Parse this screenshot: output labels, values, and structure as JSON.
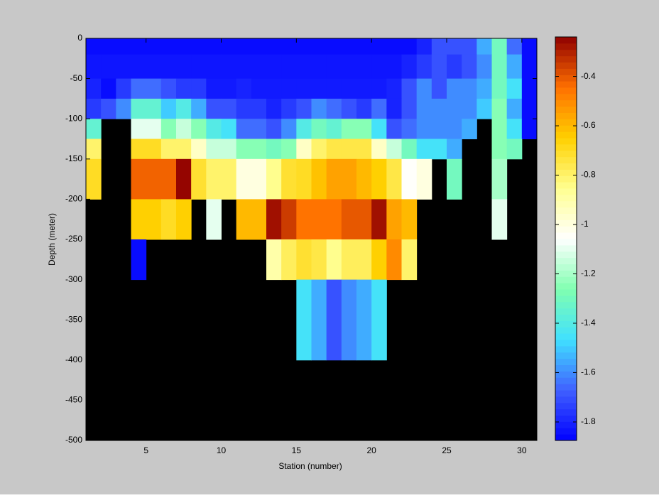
{
  "chart_data": {
    "type": "heatmap",
    "x_label": "Station (number)",
    "y_label": "Depth (meter)",
    "x_edges": [
      1,
      2,
      3,
      4,
      5,
      6,
      7,
      8,
      9,
      10,
      11,
      12,
      13,
      14,
      15,
      16,
      17,
      18,
      19,
      20,
      21,
      22,
      23,
      24,
      25,
      26,
      27,
      28,
      29,
      30,
      31
    ],
    "y_edges": [
      0,
      -20,
      -50,
      -75,
      -100,
      -125,
      -150,
      -200,
      -250,
      -300,
      -400
    ],
    "z": [
      [
        -1.85,
        -1.85,
        -1.85,
        -1.85,
        -1.85,
        -1.85,
        -1.85,
        -1.85,
        -1.85,
        -1.85,
        -1.85,
        -1.85,
        -1.85,
        -1.85,
        -1.85,
        -1.85,
        -1.85,
        -1.85,
        -1.85,
        -1.85,
        -1.85,
        -1.85,
        -1.8,
        -1.7,
        -1.7,
        -1.7,
        -1.55,
        -1.3,
        -1.65,
        -1.85
      ],
      [
        -1.83,
        -1.83,
        -1.83,
        -1.83,
        -1.83,
        -1.83,
        -1.83,
        -1.83,
        -1.83,
        -1.83,
        -1.83,
        -1.83,
        -1.83,
        -1.83,
        -1.83,
        -1.83,
        -1.83,
        -1.83,
        -1.83,
        -1.83,
        -1.83,
        -1.8,
        -1.75,
        -1.7,
        -1.75,
        -1.7,
        -1.6,
        -1.3,
        -1.55,
        -1.85
      ],
      [
        -1.8,
        -1.85,
        -1.75,
        -1.65,
        -1.65,
        -1.7,
        -1.75,
        -1.75,
        -1.82,
        -1.82,
        -1.8,
        -1.82,
        -1.82,
        -1.82,
        -1.82,
        -1.82,
        -1.82,
        -1.82,
        -1.82,
        -1.82,
        -1.8,
        -1.7,
        -1.6,
        -1.7,
        -1.6,
        -1.6,
        -1.55,
        -1.3,
        -1.45,
        -1.85
      ],
      [
        -1.75,
        -1.7,
        -1.6,
        -1.35,
        -1.35,
        -1.5,
        -1.4,
        -1.55,
        -1.7,
        -1.7,
        -1.75,
        -1.75,
        -1.8,
        -1.75,
        -1.7,
        -1.6,
        -1.65,
        -1.7,
        -1.75,
        -1.65,
        -1.8,
        -1.7,
        -1.6,
        -1.6,
        -1.6,
        -1.6,
        -1.5,
        -1.25,
        -1.55,
        -1.85
      ],
      [
        -1.35,
        null,
        null,
        -1.1,
        -1.1,
        -1.25,
        -1.15,
        -1.25,
        -1.4,
        -1.45,
        -1.65,
        -1.65,
        -1.7,
        -1.6,
        -1.4,
        -1.3,
        -1.35,
        -1.25,
        -1.25,
        -1.45,
        -1.7,
        -1.65,
        -1.6,
        -1.6,
        -1.6,
        -1.55,
        null,
        -1.25,
        -1.45,
        -1.85
      ],
      [
        -0.8,
        null,
        null,
        -0.7,
        -0.7,
        -0.8,
        -0.8,
        -0.95,
        -1.15,
        -1.15,
        -1.25,
        -1.25,
        -1.3,
        -1.25,
        -0.95,
        -0.8,
        -0.75,
        -0.75,
        -0.75,
        -0.95,
        -1.15,
        -1.3,
        -1.45,
        -1.45,
        -1.55,
        null,
        null,
        -1.25,
        -1.3,
        null
      ],
      [
        -0.7,
        null,
        null,
        -0.42,
        -0.42,
        -0.42,
        -0.25,
        -0.72,
        -0.8,
        -0.8,
        -1.0,
        -1.0,
        -0.85,
        -0.72,
        -0.7,
        -0.62,
        -0.55,
        -0.55,
        -0.6,
        -0.65,
        -0.75,
        -1.05,
        -1.0,
        null,
        -1.3,
        null,
        null,
        -1.2,
        null,
        null
      ],
      [
        null,
        null,
        null,
        -0.65,
        -0.65,
        -0.7,
        -0.65,
        null,
        -1.1,
        null,
        -0.6,
        -0.6,
        -0.27,
        -0.35,
        -0.45,
        -0.45,
        -0.45,
        -0.4,
        -0.4,
        -0.27,
        -0.55,
        -0.6,
        null,
        null,
        null,
        null,
        null,
        -1.1,
        null,
        null
      ],
      [
        null,
        null,
        null,
        -1.85,
        null,
        null,
        null,
        null,
        null,
        null,
        null,
        null,
        -0.9,
        -0.78,
        -0.72,
        -0.75,
        -0.85,
        -0.78,
        -0.78,
        -0.65,
        -0.5,
        -0.8,
        null,
        null,
        null,
        null,
        null,
        null,
        null,
        null
      ],
      [
        null,
        null,
        null,
        null,
        null,
        null,
        null,
        null,
        null,
        null,
        null,
        null,
        null,
        null,
        -1.45,
        -1.55,
        -1.7,
        -1.6,
        -1.55,
        -1.45,
        null,
        null,
        null,
        null,
        null,
        null,
        null,
        null,
        null,
        null
      ]
    ],
    "xlim": [
      1,
      31
    ],
    "xticks": [
      5,
      10,
      15,
      20,
      25,
      30
    ],
    "ylim": [
      -500,
      0
    ],
    "yticks": [
      0,
      -50,
      -100,
      -150,
      -200,
      -250,
      -300,
      -350,
      -400,
      -450,
      -500
    ],
    "clim": [
      -1.875,
      -0.24
    ],
    "cticks": [
      -1.8,
      -1.6,
      -1.4,
      -1.2,
      -1,
      -0.8,
      -0.6,
      -0.4
    ],
    "colormap": [
      "#0000ff",
      "#4060ff",
      "#40e0ff",
      "#80ffb0",
      "#ffffff",
      "#ffff90",
      "#ffd000",
      "#ff7000",
      "#900000"
    ],
    "missing_color": "#000000",
    "background": "#c8c8c8"
  }
}
